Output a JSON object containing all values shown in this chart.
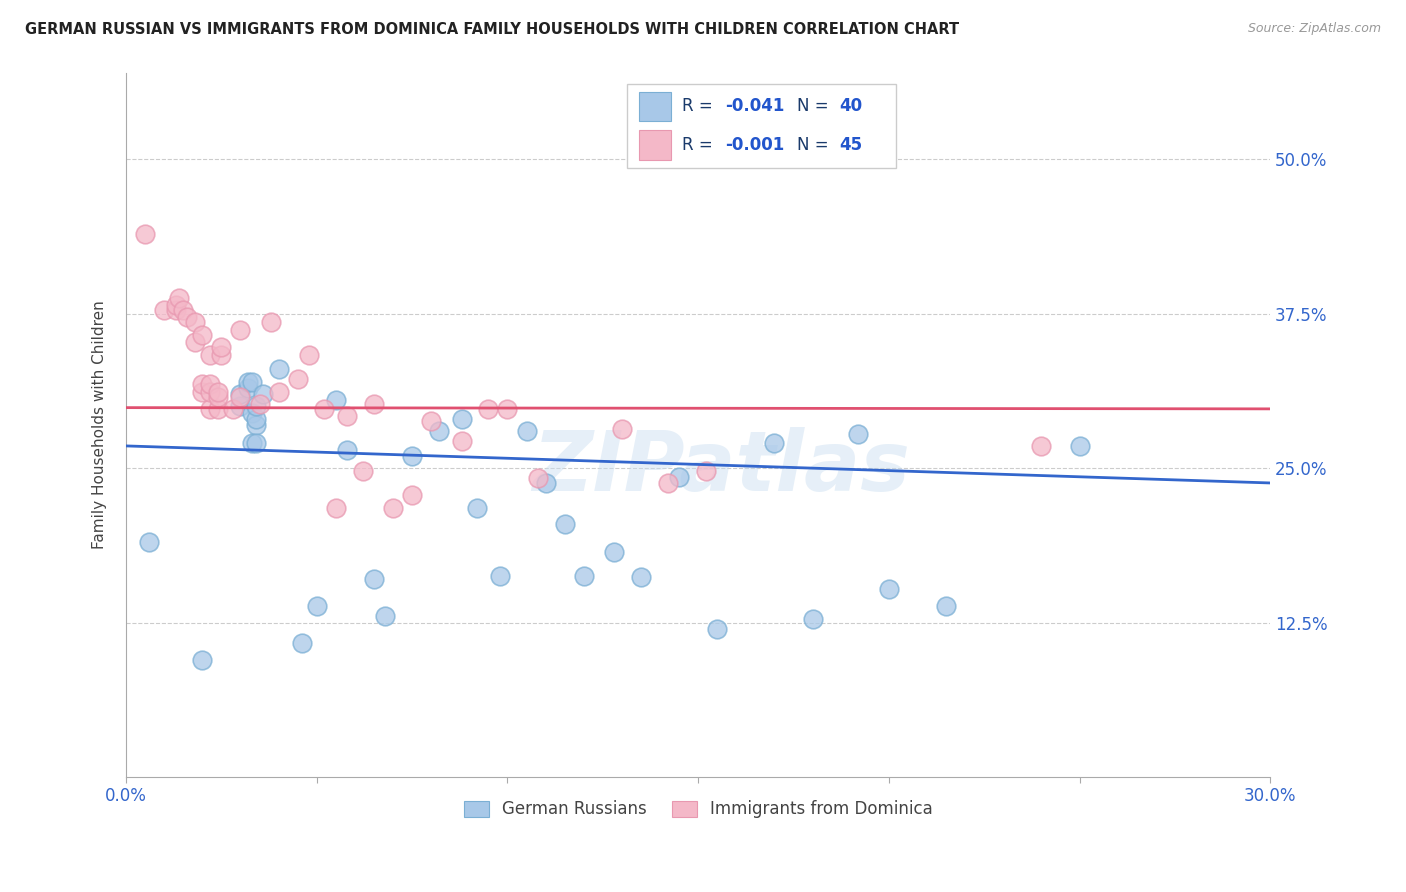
{
  "title": "GERMAN RUSSIAN VS IMMIGRANTS FROM DOMINICA FAMILY HOUSEHOLDS WITH CHILDREN CORRELATION CHART",
  "source": "Source: ZipAtlas.com",
  "ylabel": "Family Households with Children",
  "ytick_labels": [
    "50.0%",
    "37.5%",
    "25.0%",
    "12.5%"
  ],
  "ytick_values": [
    0.5,
    0.375,
    0.25,
    0.125
  ],
  "xlim": [
    0.0,
    0.3
  ],
  "ylim": [
    0.0,
    0.57
  ],
  "legend_r1_label": "R = ",
  "legend_r1_val": "-0.041",
  "legend_n1_label": "  N = ",
  "legend_n1_val": "40",
  "legend_r2_label": "R = ",
  "legend_r2_val": "-0.001",
  "legend_n2_label": "  N = ",
  "legend_n2_val": "45",
  "blue_color": "#a8c8e8",
  "pink_color": "#f4b8c8",
  "blue_edge_color": "#7bafd4",
  "pink_edge_color": "#e898b0",
  "blue_line_color": "#3366cc",
  "pink_line_color": "#e05070",
  "grid_color": "#cccccc",
  "label_color": "#3366cc",
  "watermark": "ZIPatlas",
  "blue_scatter_x": [
    0.006,
    0.02,
    0.03,
    0.03,
    0.032,
    0.032,
    0.033,
    0.033,
    0.033,
    0.034,
    0.034,
    0.034,
    0.034,
    0.036,
    0.04,
    0.046,
    0.05,
    0.055,
    0.058,
    0.065,
    0.068,
    0.075,
    0.082,
    0.088,
    0.092,
    0.098,
    0.105,
    0.11,
    0.115,
    0.12,
    0.128,
    0.135,
    0.145,
    0.155,
    0.17,
    0.18,
    0.192,
    0.2,
    0.215,
    0.25
  ],
  "blue_scatter_y": [
    0.19,
    0.095,
    0.3,
    0.31,
    0.315,
    0.32,
    0.32,
    0.295,
    0.27,
    0.285,
    0.29,
    0.3,
    0.27,
    0.31,
    0.33,
    0.108,
    0.138,
    0.305,
    0.265,
    0.16,
    0.13,
    0.26,
    0.28,
    0.29,
    0.218,
    0.163,
    0.28,
    0.238,
    0.205,
    0.163,
    0.182,
    0.162,
    0.243,
    0.12,
    0.27,
    0.128,
    0.278,
    0.152,
    0.138,
    0.268
  ],
  "pink_scatter_x": [
    0.005,
    0.01,
    0.013,
    0.013,
    0.014,
    0.015,
    0.016,
    0.018,
    0.018,
    0.02,
    0.02,
    0.02,
    0.022,
    0.022,
    0.022,
    0.022,
    0.024,
    0.024,
    0.024,
    0.025,
    0.025,
    0.028,
    0.03,
    0.03,
    0.035,
    0.038,
    0.04,
    0.045,
    0.048,
    0.052,
    0.055,
    0.058,
    0.062,
    0.065,
    0.07,
    0.075,
    0.08,
    0.088,
    0.095,
    0.1,
    0.108,
    0.13,
    0.142,
    0.152,
    0.24
  ],
  "pink_scatter_y": [
    0.44,
    0.378,
    0.378,
    0.382,
    0.388,
    0.378,
    0.372,
    0.352,
    0.368,
    0.312,
    0.318,
    0.358,
    0.298,
    0.312,
    0.318,
    0.342,
    0.298,
    0.308,
    0.312,
    0.342,
    0.348,
    0.298,
    0.308,
    0.362,
    0.302,
    0.368,
    0.312,
    0.322,
    0.342,
    0.298,
    0.218,
    0.292,
    0.248,
    0.302,
    0.218,
    0.228,
    0.288,
    0.272,
    0.298,
    0.298,
    0.242,
    0.282,
    0.238,
    0.248,
    0.268
  ],
  "blue_line_x": [
    0.0,
    0.3
  ],
  "blue_line_y": [
    0.268,
    0.238
  ],
  "pink_line_x": [
    0.0,
    0.3
  ],
  "pink_line_y": [
    0.299,
    0.298
  ],
  "bottom_legend_labels": [
    "German Russians",
    "Immigrants from Dominica"
  ]
}
